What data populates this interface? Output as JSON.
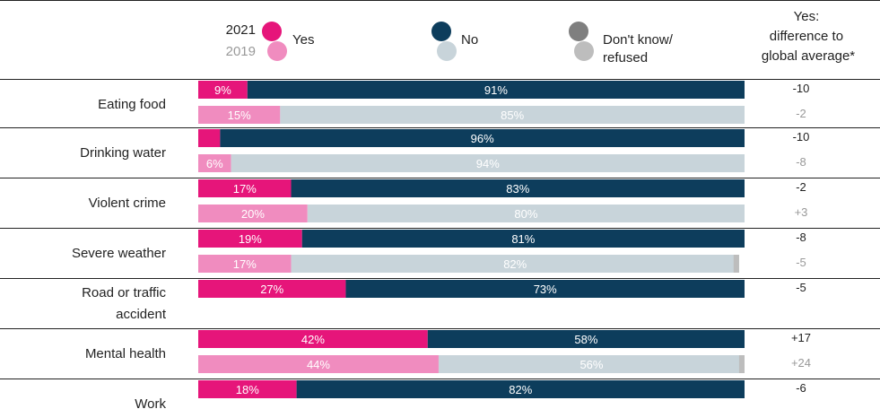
{
  "chart_data": {
    "type": "bar",
    "stacked": true,
    "orientation": "horizontal",
    "title": "",
    "xlabel": "",
    "ylabel": "",
    "xlim": [
      0,
      100
    ],
    "legend": {
      "years": [
        "2021",
        "2019"
      ],
      "series": [
        "Yes",
        "No",
        "Don't know/ refused"
      ],
      "diff_header": "Yes: difference to global average*"
    },
    "colors": {
      "yes_2021": "#e6157a",
      "no_2021": "#0d3d5c",
      "dk_2021": "#7f7f7f",
      "yes_2019": "#f08cbf",
      "no_2019": "#c8d4da",
      "dk_2019": "#bdbdbd",
      "rule": "#222222"
    },
    "categories": [
      "Eating food",
      "Drinking water",
      "Violent crime",
      "Severe weather",
      "Road or traffic accident",
      "Mental health",
      "Work"
    ],
    "rows": [
      {
        "category": "Eating food",
        "y2021": {
          "yes": 9,
          "no": 91,
          "dk": 0,
          "yes_label": "9%",
          "no_label": "91%",
          "diff": "-10"
        },
        "y2019": {
          "yes": 15,
          "no": 85,
          "dk": 0,
          "yes_label": "15%",
          "no_label": "85%",
          "diff": "-2"
        }
      },
      {
        "category": "Drinking water",
        "y2021": {
          "yes": 4,
          "no": 96,
          "dk": 0,
          "yes_label": "",
          "no_label": "96%",
          "diff": "-10"
        },
        "y2019": {
          "yes": 6,
          "no": 94,
          "dk": 0,
          "yes_label": "6%",
          "no_label": "94%",
          "diff": "-8"
        }
      },
      {
        "category": "Violent crime",
        "y2021": {
          "yes": 17,
          "no": 83,
          "dk": 0,
          "yes_label": "17%",
          "no_label": "83%",
          "diff": "-2"
        },
        "y2019": {
          "yes": 20,
          "no": 80,
          "dk": 0,
          "yes_label": "20%",
          "no_label": "80%",
          "diff": "+3"
        }
      },
      {
        "category": "Severe weather",
        "y2021": {
          "yes": 19,
          "no": 81,
          "dk": 0,
          "yes_label": "19%",
          "no_label": "81%",
          "diff": "-8"
        },
        "y2019": {
          "yes": 17,
          "no": 82,
          "dk": 1,
          "yes_label": "17%",
          "no_label": "82%",
          "diff": "-5"
        }
      },
      {
        "category": "Road or traffic accident",
        "y2021": {
          "yes": 27,
          "no": 73,
          "dk": 0,
          "yes_label": "27%",
          "no_label": "73%",
          "diff": "-5"
        },
        "y2019": null
      },
      {
        "category": "Mental health",
        "y2021": {
          "yes": 42,
          "no": 58,
          "dk": 0,
          "yes_label": "42%",
          "no_label": "58%",
          "diff": "+17"
        },
        "y2019": {
          "yes": 44,
          "no": 56,
          "dk": 1,
          "yes_label": "44%",
          "no_label": "56%",
          "diff": "+24"
        }
      },
      {
        "category": "Work",
        "y2021": {
          "yes": 18,
          "no": 82,
          "dk": 0,
          "yes_label": "18%",
          "no_label": "82%",
          "diff": "-6"
        },
        "y2019": null
      }
    ]
  }
}
